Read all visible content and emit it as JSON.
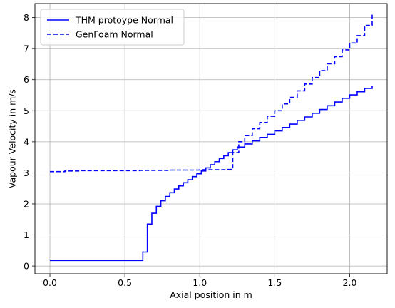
{
  "chart_data": {
    "type": "line",
    "title": "",
    "xlabel": "Axial position in m",
    "ylabel": "Vapour Velocity in m/s",
    "xlim": [
      -0.1,
      2.25
    ],
    "ylim": [
      -0.25,
      8.45
    ],
    "grid": true,
    "legend_position": "top-left",
    "xticks": [
      0.0,
      0.5,
      1.0,
      1.5,
      2.0
    ],
    "xtick_labels": [
      "0.0",
      "0.5",
      "1.0",
      "1.5",
      "2.0"
    ],
    "yticks": [
      0,
      1,
      2,
      3,
      4,
      5,
      6,
      7,
      8
    ],
    "ytick_labels": [
      "0",
      "1",
      "2",
      "3",
      "4",
      "5",
      "6",
      "7",
      "8"
    ],
    "series": [
      {
        "name": "THM protoype Normal",
        "style": "solid",
        "color": "#0000ff",
        "x": [
          0.0,
          0.2,
          0.4,
          0.6,
          0.62,
          0.65,
          0.68,
          0.71,
          0.74,
          0.77,
          0.8,
          0.83,
          0.86,
          0.89,
          0.92,
          0.95,
          0.98,
          1.01,
          1.04,
          1.07,
          1.1,
          1.13,
          1.16,
          1.19,
          1.22,
          1.25,
          1.3,
          1.35,
          1.4,
          1.45,
          1.5,
          1.55,
          1.6,
          1.65,
          1.7,
          1.75,
          1.8,
          1.85,
          1.9,
          1.95,
          2.0,
          2.05,
          2.1,
          2.15
        ],
        "y": [
          0.18,
          0.18,
          0.18,
          0.18,
          0.45,
          1.35,
          1.7,
          1.92,
          2.1,
          2.24,
          2.36,
          2.48,
          2.58,
          2.68,
          2.78,
          2.88,
          2.97,
          3.06,
          3.16,
          3.26,
          3.36,
          3.46,
          3.55,
          3.65,
          3.74,
          3.83,
          3.93,
          4.03,
          4.14,
          4.24,
          4.35,
          4.46,
          4.57,
          4.69,
          4.8,
          4.92,
          5.04,
          5.16,
          5.28,
          5.4,
          5.51,
          5.61,
          5.72,
          5.8
        ]
      },
      {
        "name": "GenFoam Normal",
        "style": "dashed",
        "color": "#0000ff",
        "x": [
          0.0,
          0.1,
          0.2,
          0.3,
          0.4,
          0.5,
          0.6,
          0.7,
          0.8,
          0.9,
          1.0,
          1.1,
          1.18,
          1.22,
          1.26,
          1.3,
          1.35,
          1.4,
          1.45,
          1.5,
          1.55,
          1.6,
          1.65,
          1.7,
          1.75,
          1.8,
          1.85,
          1.9,
          1.95,
          2.0,
          2.05,
          2.1,
          2.15
        ],
        "y": [
          3.04,
          3.06,
          3.07,
          3.07,
          3.07,
          3.07,
          3.08,
          3.08,
          3.09,
          3.09,
          3.1,
          3.1,
          3.11,
          3.65,
          4.0,
          4.2,
          4.42,
          4.62,
          4.82,
          5.0,
          5.22,
          5.43,
          5.64,
          5.86,
          6.07,
          6.29,
          6.51,
          6.74,
          6.96,
          7.18,
          7.42,
          7.75,
          8.1
        ]
      }
    ]
  }
}
